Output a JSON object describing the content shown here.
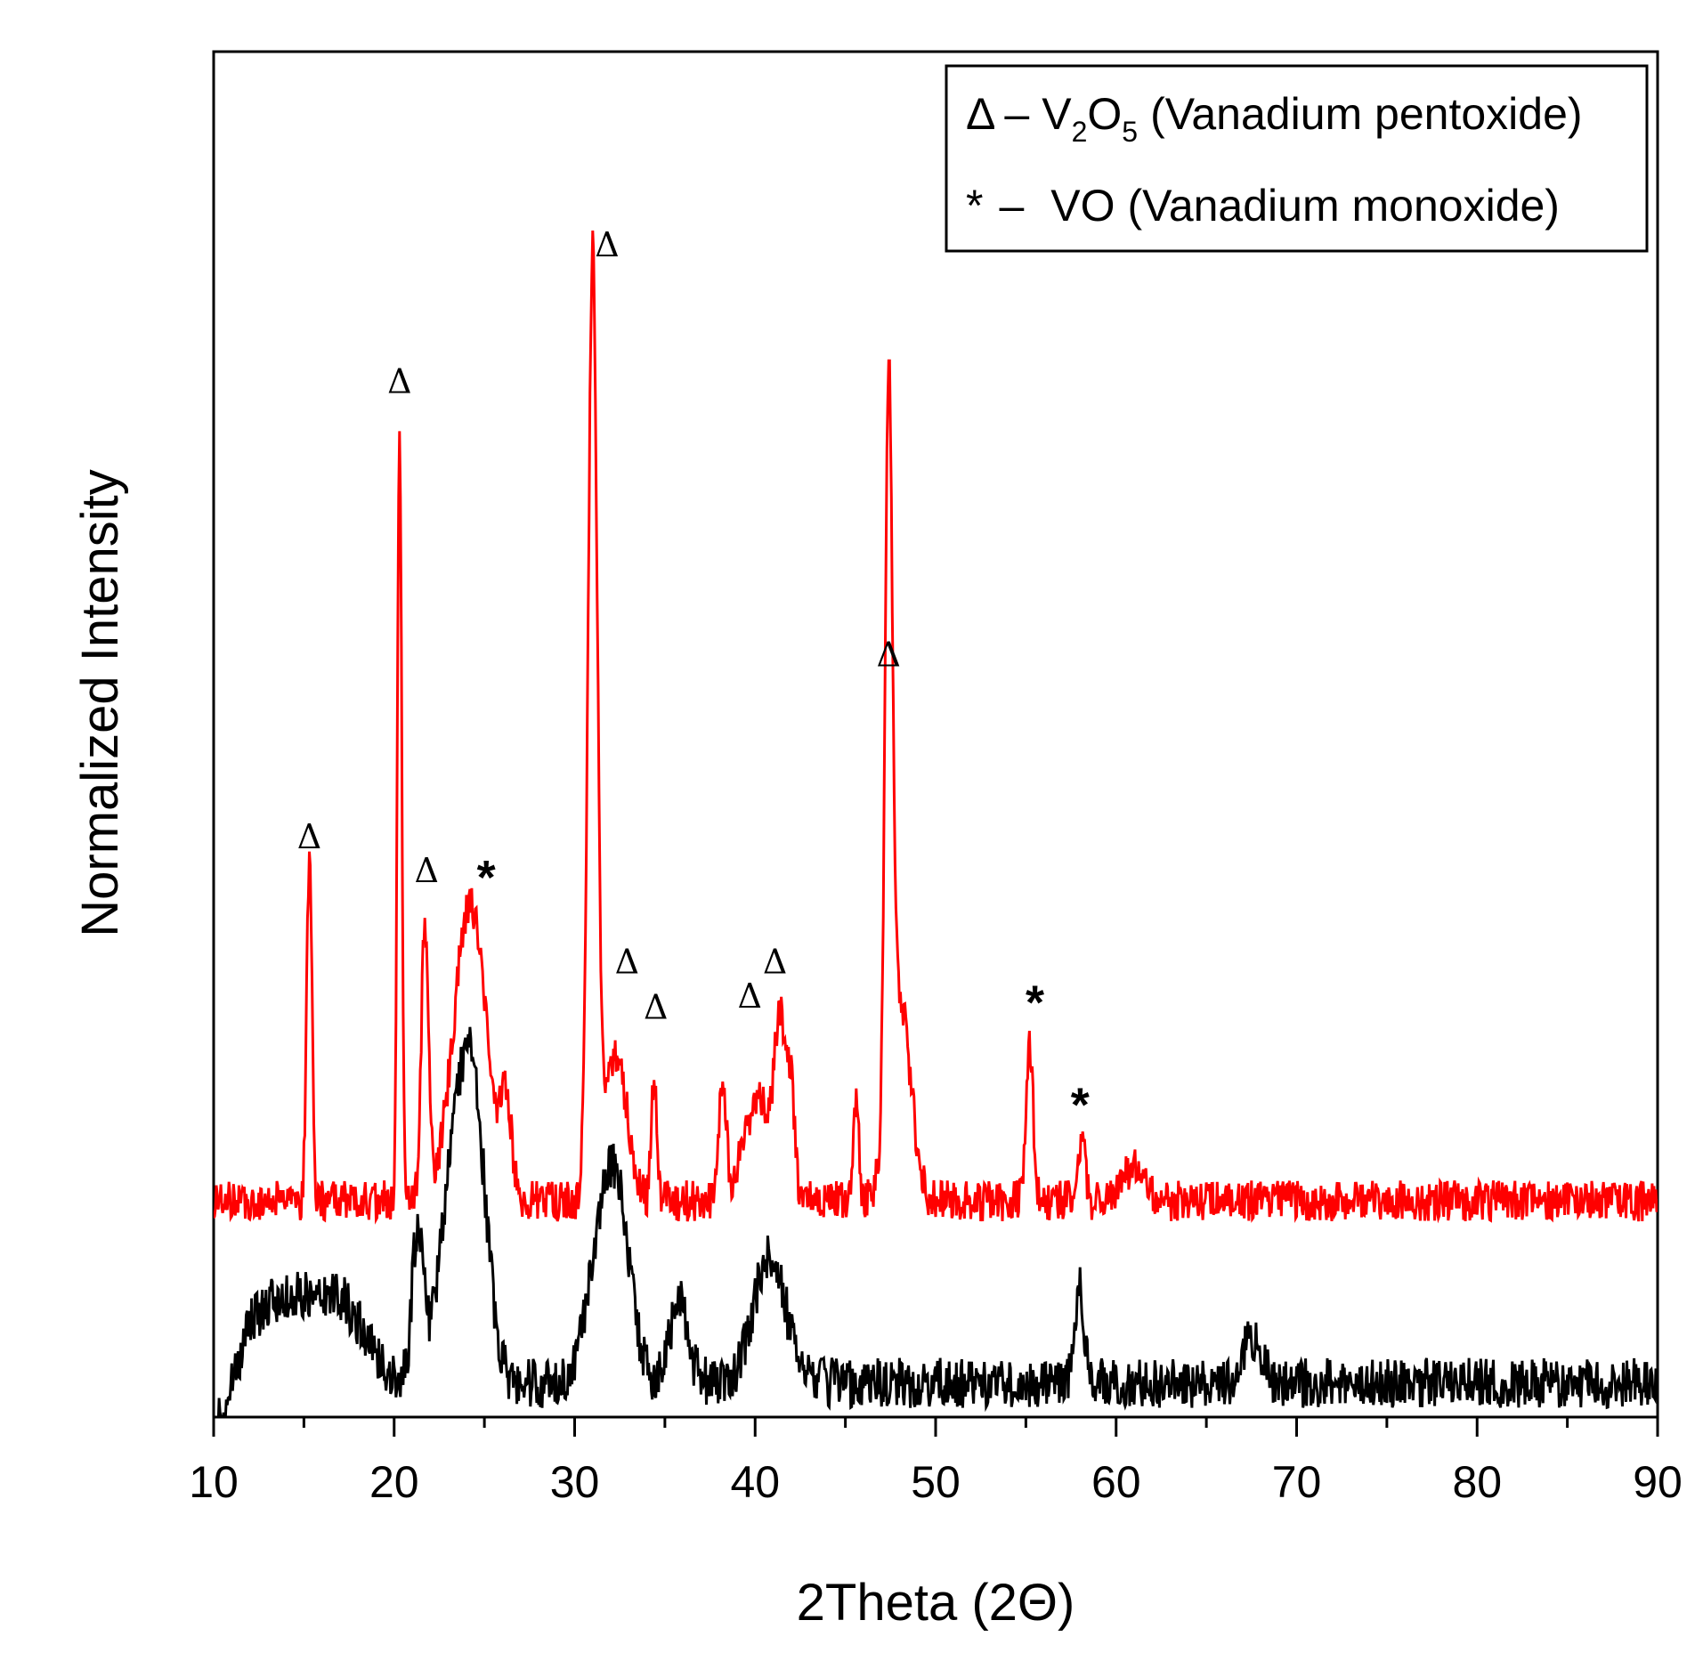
{
  "chart_data": {
    "type": "line",
    "title": "",
    "xlabel": "2Theta (2Θ)",
    "ylabel": "Normalized Intensity",
    "xlim": [
      10,
      90
    ],
    "ylim": [
      0,
      1.2
    ],
    "xticks": [
      10,
      20,
      30,
      40,
      50,
      60,
      70,
      80,
      90
    ],
    "tick_labels": [
      "10",
      "20",
      "30",
      "40",
      "50",
      "60",
      "70",
      "80",
      "90"
    ],
    "grid": false,
    "legend": {
      "position": "top-right",
      "entries": [
        {
          "symbol": "Δ",
          "dash": "–",
          "formula_main": "V",
          "sub1": "2",
          "formula_mid": "O",
          "sub2": "5",
          "desc": "(Vanadium pentoxide)"
        },
        {
          "symbol": "*",
          "dash": "–",
          "formula_main": "VO",
          "desc": "(Vanadium monoxide)"
        }
      ]
    },
    "series": [
      {
        "name": "upper (red) pattern",
        "color": "#ff0000",
        "baseline": 0.19,
        "noise": 0.018,
        "peaks": [
          {
            "x": 15.3,
            "h": 0.3,
            "w": 0.15
          },
          {
            "x": 20.3,
            "h": 0.69,
            "w": 0.12
          },
          {
            "x": 21.7,
            "h": 0.24,
            "w": 0.2
          },
          {
            "x": 24.2,
            "h": 0.26,
            "w": 0.9
          },
          {
            "x": 26.2,
            "h": 0.08,
            "w": 0.3
          },
          {
            "x": 31.0,
            "h": 0.83,
            "w": 0.25
          },
          {
            "x": 32.3,
            "h": 0.13,
            "w": 0.6
          },
          {
            "x": 34.4,
            "h": 0.11,
            "w": 0.15
          },
          {
            "x": 38.2,
            "h": 0.1,
            "w": 0.2
          },
          {
            "x": 40.2,
            "h": 0.09,
            "w": 0.8
          },
          {
            "x": 41.4,
            "h": 0.14,
            "w": 0.3
          },
          {
            "x": 42.0,
            "h": 0.09,
            "w": 0.2
          },
          {
            "x": 45.6,
            "h": 0.09,
            "w": 0.15
          },
          {
            "x": 47.4,
            "h": 0.63,
            "w": 0.2
          },
          {
            "x": 48.0,
            "h": 0.18,
            "w": 0.6
          },
          {
            "x": 55.2,
            "h": 0.14,
            "w": 0.2
          },
          {
            "x": 58.1,
            "h": 0.05,
            "w": 0.2
          },
          {
            "x": 61.0,
            "h": 0.03,
            "w": 0.6
          }
        ]
      },
      {
        "name": "lower (black) pattern",
        "color": "#000000",
        "baseline": 0.03,
        "noise": 0.022,
        "peaks": [
          {
            "x": 13.5,
            "h": 0.07,
            "w": 2.0
          },
          {
            "x": 17.0,
            "h": 0.06,
            "w": 1.5
          },
          {
            "x": 21.3,
            "h": 0.13,
            "w": 0.3
          },
          {
            "x": 23.5,
            "h": 0.2,
            "w": 0.9
          },
          {
            "x": 24.5,
            "h": 0.16,
            "w": 0.7
          },
          {
            "x": 31.5,
            "h": 0.12,
            "w": 0.8
          },
          {
            "x": 32.5,
            "h": 0.12,
            "w": 0.7
          },
          {
            "x": 35.8,
            "h": 0.07,
            "w": 0.5
          },
          {
            "x": 40.8,
            "h": 0.11,
            "w": 0.9
          },
          {
            "x": 58.0,
            "h": 0.08,
            "w": 0.25
          },
          {
            "x": 67.5,
            "h": 0.04,
            "w": 0.5
          }
        ]
      }
    ],
    "annotations": [
      {
        "symbol": "Δ",
        "x": 15.3,
        "y": 0.5
      },
      {
        "symbol": "Δ",
        "x": 20.3,
        "y": 0.9
      },
      {
        "symbol": "Δ",
        "x": 21.8,
        "y": 0.47
      },
      {
        "symbol": "*",
        "x": 25.1,
        "y": 0.46
      },
      {
        "symbol": "Δ",
        "x": 31.8,
        "y": 1.02
      },
      {
        "symbol": "Δ",
        "x": 32.9,
        "y": 0.39
      },
      {
        "symbol": "Δ",
        "x": 34.5,
        "y": 0.35
      },
      {
        "symbol": "Δ",
        "x": 39.7,
        "y": 0.36
      },
      {
        "symbol": "Δ",
        "x": 41.1,
        "y": 0.39
      },
      {
        "symbol": "Δ",
        "x": 47.4,
        "y": 0.66
      },
      {
        "symbol": "*",
        "x": 55.5,
        "y": 0.35
      },
      {
        "symbol": "*",
        "x": 58.0,
        "y": 0.26
      }
    ]
  }
}
